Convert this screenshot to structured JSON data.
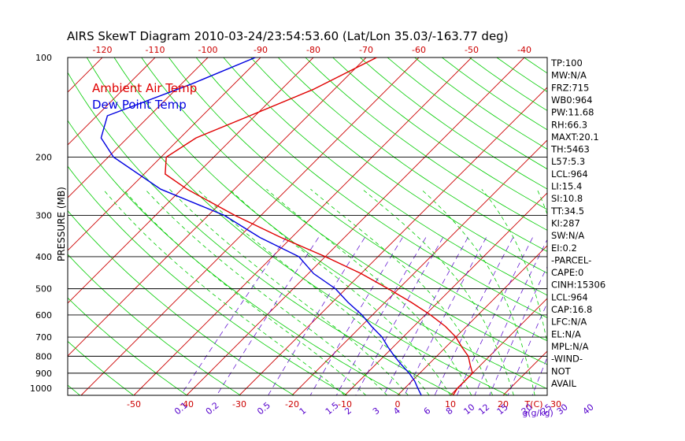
{
  "chart_data": {
    "type": "line",
    "subtype": "skew-t log-p diagram",
    "title": "AIRS SkewT Diagram 2010-03-24/23:54:53.60 (Lat/Lon 35.03/-163.77 deg)",
    "ylabel": "PRESSURE (MB)",
    "xlabel": "T(C)",
    "mixing_ratio_unit_label": "g(g/kg)",
    "pressure_range_mb": [
      100,
      1050
    ],
    "pressure_ticks": [
      100,
      200,
      300,
      400,
      500,
      600,
      700,
      800,
      900,
      1000
    ],
    "temperature_ticks_bottom": [
      -50,
      -40,
      -30,
      -20,
      -10,
      0,
      10,
      20,
      30
    ],
    "temperature_ticks_top": [
      -120,
      -110,
      -100,
      -90,
      -80,
      -70,
      -60,
      -50,
      -40
    ],
    "mixing_ratio_labels": [
      "0.1",
      "0.2",
      "0.5",
      "1",
      "1.5",
      "2",
      "3",
      "4",
      "6",
      "8",
      "10",
      "12",
      "15",
      "20",
      "25",
      "30",
      "40"
    ],
    "legend": [
      {
        "label": "Ambient Air Temp",
        "color": "#e00000"
      },
      {
        "label": "Dew Point Temp",
        "color": "#0000e0"
      }
    ],
    "colors": {
      "temperature": "#e00000",
      "dewpoint": "#0000e0",
      "isotherms": "#cc0000",
      "dry_adiabats": "#00cc00",
      "moist_adiabats": "#00cc00",
      "mixing_ratio": "#5500cc",
      "axis_labels": "#cc0000",
      "mixing_labels": "#5500cc"
    },
    "series": [
      {
        "name": "Ambient Air Temp",
        "points": [
          {
            "p": 100,
            "t": -68
          },
          {
            "p": 125,
            "t": -74
          },
          {
            "p": 150,
            "t": -81
          },
          {
            "p": 175,
            "t": -87
          },
          {
            "p": 200,
            "t": -89
          },
          {
            "p": 225,
            "t": -86
          },
          {
            "p": 250,
            "t": -79
          },
          {
            "p": 300,
            "t": -65
          },
          {
            "p": 350,
            "t": -52
          },
          {
            "p": 400,
            "t": -40
          },
          {
            "p": 450,
            "t": -30
          },
          {
            "p": 500,
            "t": -22
          },
          {
            "p": 550,
            "t": -15
          },
          {
            "p": 600,
            "t": -9
          },
          {
            "p": 650,
            "t": -4
          },
          {
            "p": 700,
            "t": 0
          },
          {
            "p": 750,
            "t": 3
          },
          {
            "p": 800,
            "t": 6
          },
          {
            "p": 850,
            "t": 8
          },
          {
            "p": 900,
            "t": 10
          },
          {
            "p": 950,
            "t": 10
          },
          {
            "p": 1000,
            "t": 10
          },
          {
            "p": 1050,
            "t": 10.5
          }
        ]
      },
      {
        "name": "Dew Point Temp",
        "points": [
          {
            "p": 100,
            "t": -91
          },
          {
            "p": 120,
            "t": -98
          },
          {
            "p": 150,
            "t": -108
          },
          {
            "p": 175,
            "t": -105
          },
          {
            "p": 200,
            "t": -99
          },
          {
            "p": 250,
            "t": -84
          },
          {
            "p": 300,
            "t": -67
          },
          {
            "p": 350,
            "t": -56
          },
          {
            "p": 400,
            "t": -45
          },
          {
            "p": 450,
            "t": -39
          },
          {
            "p": 500,
            "t": -32
          },
          {
            "p": 550,
            "t": -27
          },
          {
            "p": 600,
            "t": -22
          },
          {
            "p": 650,
            "t": -18
          },
          {
            "p": 700,
            "t": -14
          },
          {
            "p": 750,
            "t": -11
          },
          {
            "p": 800,
            "t": -8
          },
          {
            "p": 850,
            "t": -5
          },
          {
            "p": 900,
            "t": -2
          },
          {
            "p": 950,
            "t": 0.5
          },
          {
            "p": 1000,
            "t": 2.5
          },
          {
            "p": 1050,
            "t": 4.5
          }
        ]
      }
    ],
    "indices": [
      "TP:100",
      "MW:N/A",
      "FRZ:715",
      "WB0:964",
      "PW:11.68",
      "RH:66.3",
      "MAXT:20.1",
      "TH:5463",
      "L57:5.3",
      "LCL:964",
      "LI:15.4",
      "SI:10.8",
      "TT:34.5",
      "KI:287",
      "SW:N/A",
      "EI:0.2",
      "-PARCEL-",
      "CAPE:0",
      "CINH:15306",
      "LCL:964",
      "CAP:16.8",
      "LFC:N/A",
      "EL:N/A",
      "MPL:N/A",
      "-WIND-",
      "NOT",
      "AVAIL"
    ]
  }
}
